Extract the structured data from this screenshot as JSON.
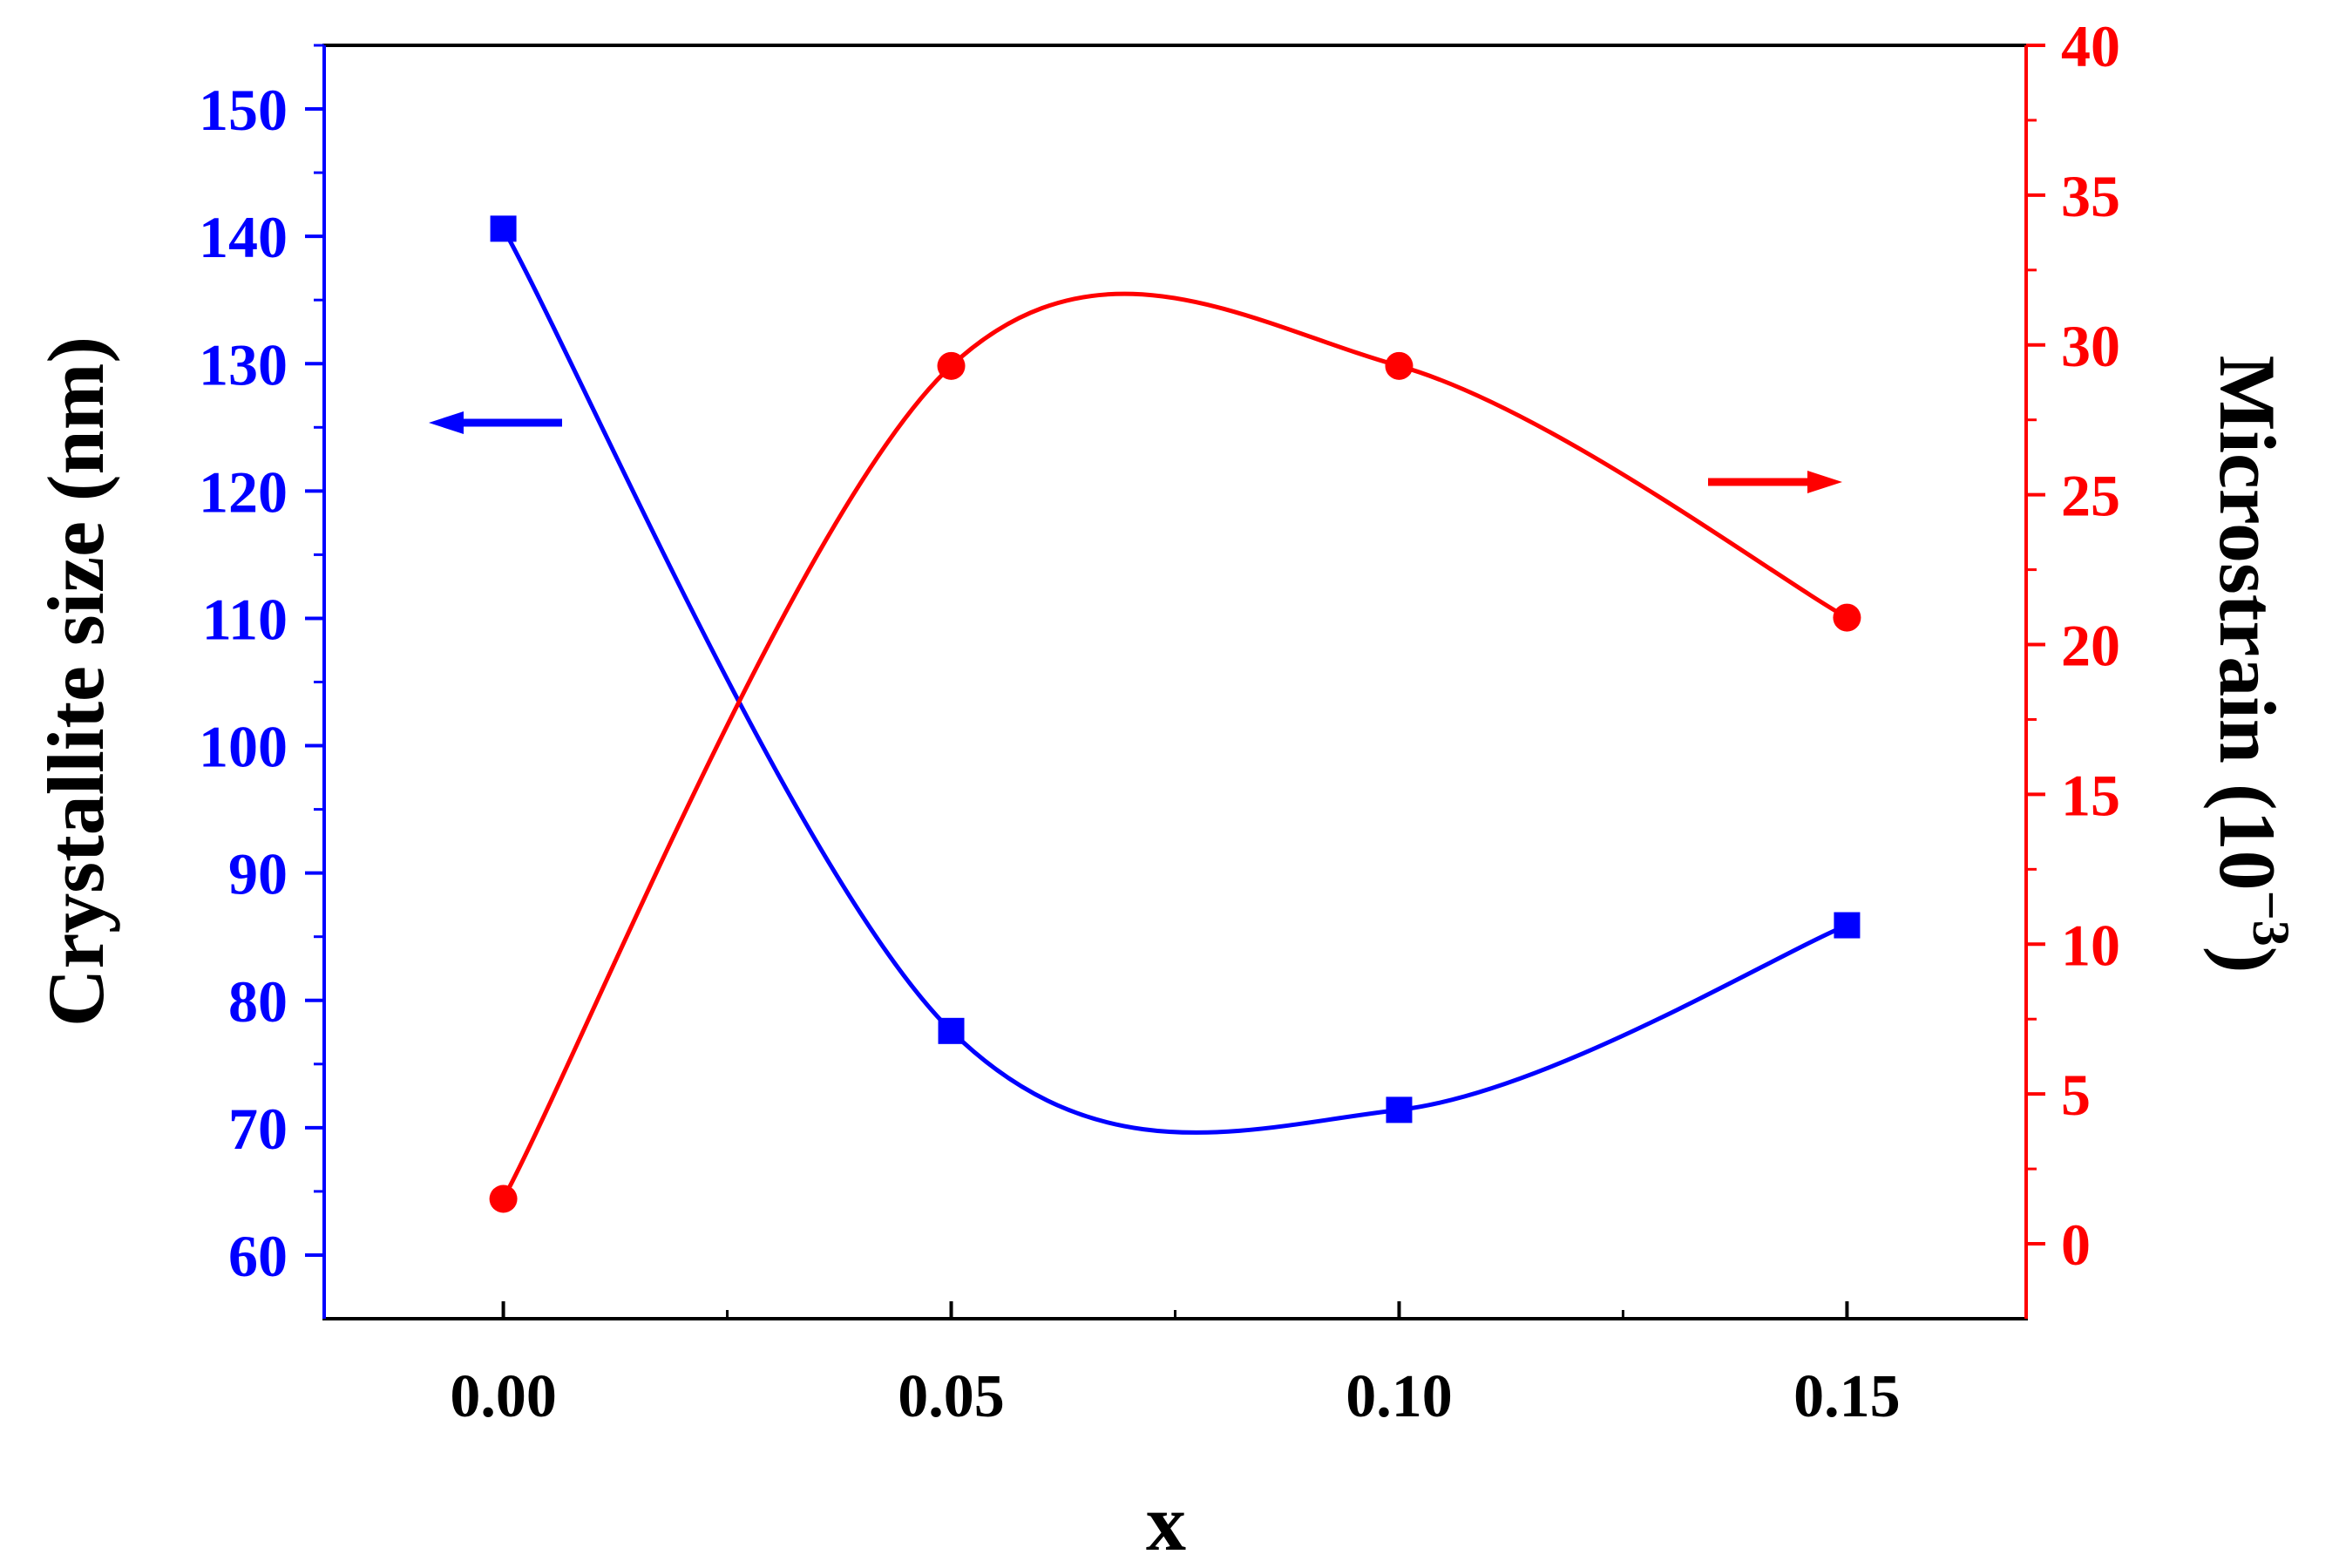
{
  "chart_data": {
    "type": "line",
    "title": "",
    "x": [
      0.0,
      0.05,
      0.1,
      0.15
    ],
    "xlabel": "x",
    "xlim": [
      -0.02,
      0.17
    ],
    "xticks": [
      "0.00",
      "0.05",
      "0.10",
      "0.15"
    ],
    "y_left": {
      "label": "Crystallite size (nm)",
      "lim": [
        55,
        155
      ],
      "ticks": [
        "60",
        "70",
        "80",
        "90",
        "100",
        "110",
        "120",
        "130",
        "140",
        "150"
      ],
      "color": "#0000ff"
    },
    "y_right": {
      "label_main": "Microstrain (10",
      "label_sup": "−3",
      "label_end": ")",
      "lim": [
        -2.5,
        40
      ],
      "ticks": [
        "0",
        "5",
        "10",
        "15",
        "20",
        "25",
        "30",
        "35",
        "40"
      ],
      "color": "#ff0000"
    },
    "series": [
      {
        "axis": "left",
        "color": "#0000ff",
        "marker": "square",
        "values": [
          140.6,
          77.6,
          71.4,
          85.9
        ]
      },
      {
        "axis": "right",
        "color": "#ff0000",
        "marker": "circle",
        "values": [
          1.5,
          29.3,
          29.3,
          20.9
        ]
      }
    ],
    "annotations": [
      {
        "shape": "arrow-left",
        "color": "#0000ff",
        "points_to": "left axis"
      },
      {
        "shape": "arrow-right",
        "color": "#ff0000",
        "points_to": "right axis"
      }
    ],
    "grid": false,
    "legend": "none"
  }
}
